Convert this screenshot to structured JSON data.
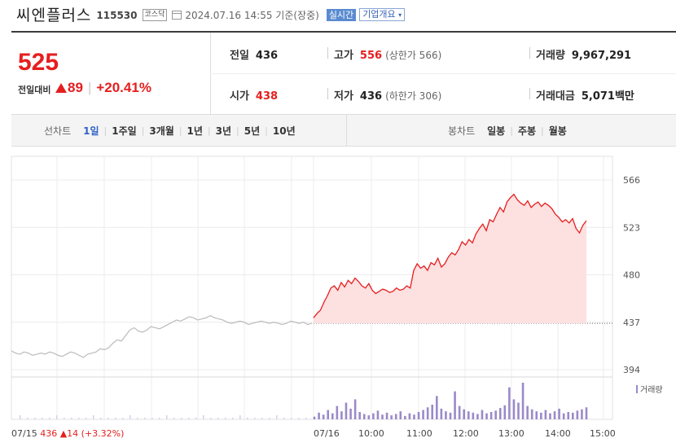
{
  "stock": {
    "name": "씨엔플러스",
    "code": "115530",
    "market": "코스닥",
    "date_text": "2024.07.16 14:55 기준(장중)",
    "realtime": "실시간",
    "corp_info": "기업개요"
  },
  "quote": {
    "price": "525",
    "change_label": "전일대비",
    "change": "89",
    "change_rate": "+20.41%",
    "prev_label": "전일",
    "prev": "436",
    "high_label": "고가",
    "high": "556",
    "upper_limit": "(상한가 566)",
    "volume_label": "거래량",
    "volume": "9,967,291",
    "open_label": "시가",
    "open": "438",
    "low_label": "저가",
    "low": "436",
    "lower_limit": "(하한가 306)",
    "amount_label": "거래대금",
    "amount": "5,071",
    "amount_unit": "백만"
  },
  "tabs": {
    "line_title": "선차트",
    "line_periods": [
      "1일",
      "1주일",
      "3개월",
      "1년",
      "3년",
      "5년",
      "10년"
    ],
    "line_selected": 0,
    "candle_title": "봉차트",
    "candle_periods": [
      "일봉",
      "주봉",
      "월봉"
    ]
  },
  "colors": {
    "up": "#e61e1e",
    "blue": "#2e63c6",
    "volume": "#9a8ac8",
    "prev_line": "#bbbbbb"
  },
  "chart_data": {
    "type": "line",
    "y_ticks": [
      "566",
      "523",
      "480",
      "437",
      "394"
    ],
    "ylim": [
      394,
      566
    ],
    "reference_price": 436,
    "x_labels": [
      "07/16",
      "10:00",
      "11:00",
      "12:00",
      "13:00",
      "14:00",
      "15:00"
    ],
    "prev_day": {
      "date": "07/15",
      "close": "436",
      "change": "14",
      "rate": "(+3.32%)"
    },
    "prev_series": [
      411,
      409,
      408,
      410,
      409,
      407,
      408,
      409,
      408,
      410,
      409,
      407,
      406,
      408,
      410,
      409,
      407,
      405,
      408,
      409,
      410,
      413,
      412,
      414,
      418,
      421,
      420,
      425,
      430,
      432,
      429,
      428,
      430,
      433,
      432,
      431,
      433,
      435,
      437,
      439,
      438,
      440,
      442,
      441,
      439,
      440,
      441,
      443,
      441,
      440,
      439,
      437,
      436,
      437,
      438,
      437,
      435,
      436,
      437,
      438,
      437,
      436,
      437,
      436,
      435,
      436,
      438,
      437,
      436,
      437,
      435,
      436
    ],
    "today_series": [
      441,
      445,
      448,
      455,
      461,
      468,
      470,
      466,
      473,
      469,
      475,
      472,
      477,
      474,
      470,
      468,
      472,
      466,
      463,
      465,
      467,
      466,
      464,
      465,
      468,
      466,
      467,
      470,
      468,
      484,
      490,
      486,
      488,
      484,
      491,
      489,
      495,
      487,
      490,
      496,
      500,
      498,
      503,
      510,
      507,
      512,
      509,
      517,
      522,
      526,
      520,
      530,
      528,
      535,
      541,
      537,
      546,
      550,
      553,
      548,
      545,
      543,
      547,
      541,
      544,
      546,
      542,
      545,
      543,
      540,
      535,
      532,
      528,
      530,
      527,
      531,
      522,
      518,
      525,
      529
    ],
    "volume_label": "거래량",
    "volume_series": [
      4,
      10,
      7,
      14,
      9,
      20,
      12,
      25,
      16,
      30,
      11,
      8,
      6,
      9,
      13,
      7,
      10,
      6,
      8,
      12,
      5,
      9,
      7,
      11,
      14,
      18,
      22,
      35,
      16,
      12,
      10,
      42,
      20,
      15,
      12,
      10,
      8,
      14,
      9,
      11,
      13,
      17,
      21,
      48,
      30,
      25,
      55,
      20,
      15,
      12,
      10,
      14,
      9,
      12,
      16,
      9,
      11,
      10,
      13,
      15,
      18
    ]
  }
}
